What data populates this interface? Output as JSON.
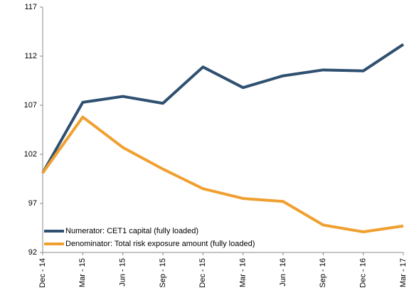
{
  "chart_data": {
    "type": "line",
    "categories": [
      "Dec - 14",
      "Mar - 15",
      "Jun - 15",
      "Sep - 15",
      "Dec - 15",
      "Mar - 16",
      "Jun - 16",
      "Sep - 16",
      "Dec - 16",
      "Mar - 17"
    ],
    "series": [
      {
        "name": "Numerator: CET1 capital (fully loaded)",
        "color": "#2f5070",
        "values": [
          100.1,
          107.3,
          107.9,
          107.2,
          110.9,
          108.8,
          110.0,
          110.6,
          110.5,
          113.2
        ]
      },
      {
        "name": "Denominator: Total risk exposure amount (fully loaded)",
        "color": "#f0a030",
        "values": [
          100.1,
          105.8,
          102.7,
          100.5,
          98.5,
          97.5,
          97.2,
          94.8,
          94.1,
          94.7
        ]
      }
    ],
    "ylim": [
      92,
      117
    ],
    "yticks": [
      92,
      97,
      102,
      107,
      112,
      117
    ],
    "grid": false,
    "legend": "lower left"
  }
}
